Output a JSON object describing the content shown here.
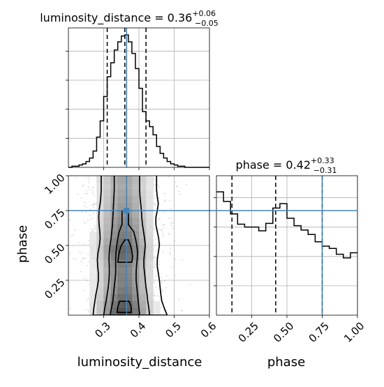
{
  "chart_data": [
    {
      "type": "histogram",
      "panel": "luminosity_distance-marginal",
      "title": {
        "main": "luminosity_distance = 0.36",
        "sup": "+0.06",
        "sub": "−0.05"
      },
      "xlim": [
        0.2,
        0.6
      ],
      "bin_edges": [
        0.2,
        0.21,
        0.22,
        0.23,
        0.24,
        0.25,
        0.26,
        0.27,
        0.28,
        0.29,
        0.3,
        0.31,
        0.32,
        0.33,
        0.34,
        0.35,
        0.36,
        0.37,
        0.38,
        0.39,
        0.4,
        0.41,
        0.42,
        0.43,
        0.44,
        0.45,
        0.46,
        0.47,
        0.48,
        0.49,
        0.5,
        0.51,
        0.52,
        0.53,
        0.54,
        0.55,
        0.56,
        0.57,
        0.58,
        0.59,
        0.6
      ],
      "counts": [
        0,
        1,
        1,
        2,
        3,
        5,
        8,
        14,
        26,
        40,
        61,
        78,
        90,
        101,
        108,
        113,
        114,
        108,
        98,
        85,
        68,
        48,
        40,
        35,
        28,
        18,
        12,
        8,
        5,
        3,
        2,
        1,
        1,
        0,
        0,
        0,
        0,
        0,
        0,
        0
      ],
      "ylim": [
        0,
        120
      ],
      "quantiles": [
        0.31,
        0.36,
        0.42
      ],
      "truth": 0.365
    },
    {
      "type": "histogram",
      "panel": "phase-marginal",
      "title": {
        "main": "phase = 0.42",
        "sup": "+0.33",
        "sub": "−0.31"
      },
      "xlim": [
        0.0,
        1.0
      ],
      "xticks": [
        0.25,
        0.5,
        0.75,
        1.0
      ],
      "xticklabels": [
        "0.25",
        "0.50",
        "0.75",
        "1.00"
      ],
      "xlabel": "phase",
      "bin_edges": [
        0.0,
        0.05,
        0.1,
        0.15,
        0.2,
        0.25,
        0.3,
        0.35,
        0.4,
        0.45,
        0.5,
        0.55,
        0.6,
        0.65,
        0.7,
        0.75,
        0.8,
        0.85,
        0.9,
        0.95,
        1.0
      ],
      "counts": [
        168,
        155,
        138,
        124,
        120,
        120,
        115,
        125,
        146,
        152,
        132,
        122,
        116,
        110,
        100,
        94,
        91,
        83,
        78,
        85
      ],
      "ylim": [
        0,
        190
      ],
      "quantiles": [
        0.11,
        0.42,
        0.75
      ],
      "truth": 0.75
    },
    {
      "type": "scatter",
      "panel": "joint-density",
      "xlabel": "luminosity_distance",
      "ylabel": "phase",
      "xlim": [
        0.2,
        0.6
      ],
      "ylim": [
        0.0,
        1.0
      ],
      "xticks": [
        0.3,
        0.4,
        0.5,
        0.6
      ],
      "xticklabels": [
        "0.3",
        "0.4",
        "0.5",
        "0.6"
      ],
      "yticks": [
        0.25,
        0.5,
        0.75,
        1.0
      ],
      "yticklabels": [
        "0.25",
        "0.50",
        "0.75",
        "1.00"
      ],
      "truth": [
        0.365,
        0.75
      ],
      "density": {
        "x_edges": [
          0.2,
          0.22,
          0.24,
          0.26,
          0.28,
          0.3,
          0.32,
          0.34,
          0.36,
          0.38,
          0.4,
          0.42,
          0.44,
          0.46,
          0.48,
          0.5,
          0.52,
          0.54,
          0.56,
          0.58,
          0.6
        ],
        "y_edges": [
          0.0,
          0.05,
          0.1,
          0.15,
          0.2,
          0.25,
          0.3,
          0.35,
          0.4,
          0.45,
          0.5,
          0.55,
          0.6,
          0.65,
          0.7,
          0.75,
          0.8,
          0.85,
          0.9,
          0.95,
          1.0
        ],
        "row_center_x": 0.357,
        "row_sigma": 0.046,
        "row_weight": [
          1.0,
          0.95,
          0.85,
          0.78,
          0.74,
          0.74,
          0.72,
          0.76,
          0.86,
          0.9,
          0.82,
          0.76,
          0.71,
          0.67,
          0.62,
          0.58,
          0.56,
          0.52,
          0.49,
          0.52
        ]
      },
      "contour_levels": [
        {
          "level": "outer",
          "left": [
            0.27,
            0.272,
            0.275,
            0.278,
            0.282,
            0.285,
            0.285,
            0.283,
            0.282,
            0.284,
            0.288,
            0.29,
            0.289,
            0.287,
            0.286,
            0.287,
            0.29,
            0.292,
            0.293,
            0.293
          ],
          "right": [
            0.48,
            0.472,
            0.465,
            0.462,
            0.46,
            0.458,
            0.455,
            0.452,
            0.452,
            0.455,
            0.458,
            0.456,
            0.452,
            0.448,
            0.448,
            0.452,
            0.455,
            0.452,
            0.45,
            0.45
          ],
          "y": [
            0.0,
            0.05,
            0.1,
            0.15,
            0.2,
            0.25,
            0.3,
            0.35,
            0.4,
            0.45,
            0.5,
            0.55,
            0.6,
            0.65,
            0.7,
            0.75,
            0.8,
            0.85,
            0.9,
            0.95
          ]
        },
        {
          "level": "middle",
          "left": [
            0.3,
            0.303,
            0.307,
            0.31,
            0.313,
            0.315,
            0.316,
            0.316,
            0.315,
            0.316,
            0.318,
            0.321,
            0.323,
            0.325,
            0.326,
            0.327,
            0.328,
            0.329,
            0.33,
            0.33
          ],
          "right": [
            0.43,
            0.428,
            0.425,
            0.423,
            0.42,
            0.418,
            0.416,
            0.414,
            0.414,
            0.416,
            0.418,
            0.416,
            0.413,
            0.41,
            0.408,
            0.407,
            0.405,
            0.403,
            0.402,
            0.402
          ],
          "y": [
            0.0,
            0.05,
            0.1,
            0.15,
            0.2,
            0.25,
            0.3,
            0.35,
            0.4,
            0.45,
            0.5,
            0.55,
            0.6,
            0.65,
            0.7,
            0.75,
            0.8,
            0.85,
            0.9,
            0.95
          ]
        },
        {
          "level": "inner",
          "left": [
            0.318,
            0.322,
            0.326,
            0.328,
            0.33,
            0.332,
            0.334,
            0.334,
            0.334,
            0.335,
            0.337,
            0.34,
            0.344,
            0.352
          ],
          "right": [
            0.402,
            0.4,
            0.398,
            0.396,
            0.394,
            0.392,
            0.392,
            0.393,
            0.395,
            0.396,
            0.394,
            0.39,
            0.385,
            0.37
          ],
          "y": [
            0.0,
            0.05,
            0.1,
            0.15,
            0.2,
            0.25,
            0.3,
            0.35,
            0.4,
            0.45,
            0.5,
            0.55,
            0.6,
            0.65
          ]
        },
        {
          "level": "core-upper",
          "left": [
            0.34,
            0.342,
            0.345,
            0.35,
            0.36
          ],
          "right": [
            0.38,
            0.382,
            0.38,
            0.376,
            0.37
          ],
          "y": [
            0.38,
            0.42,
            0.46,
            0.5,
            0.54
          ]
        },
        {
          "level": "core-lower",
          "left": [
            0.338,
            0.34,
            0.345
          ],
          "right": [
            0.378,
            0.378,
            0.372
          ],
          "y": [
            0.02,
            0.06,
            0.1
          ]
        }
      ]
    }
  ]
}
